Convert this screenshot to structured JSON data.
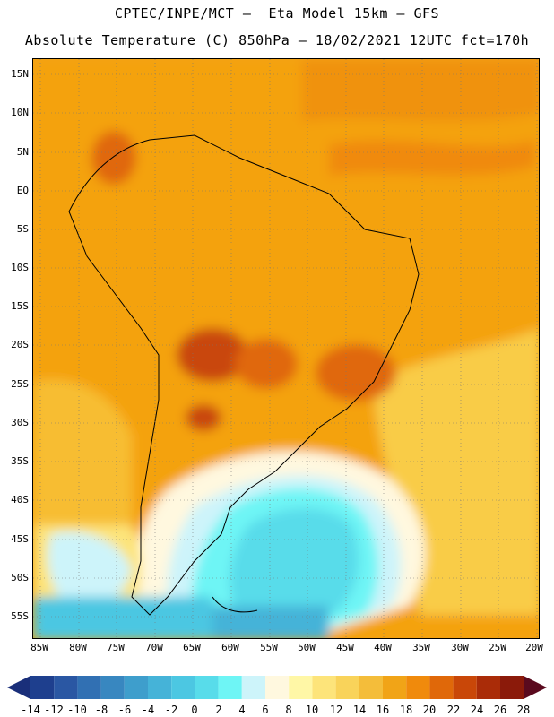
{
  "header": {
    "line1": "CPTEC/INPE/MCT –  Eta Model 15km – GFS",
    "line2": "Absolute Temperature (C) 850hPa – 18/02/2021 12UTC fct=170h"
  },
  "map": {
    "lat_labels": [
      "15N",
      "10N",
      "5N",
      "EQ",
      "5S",
      "10S",
      "15S",
      "20S",
      "25S",
      "30S",
      "35S",
      "40S",
      "45S",
      "50S",
      "55S"
    ],
    "lon_labels": [
      "85W",
      "80W",
      "75W",
      "70W",
      "65W",
      "60W",
      "55W",
      "50W",
      "45W",
      "40W",
      "35W",
      "30W",
      "25W",
      "20W"
    ],
    "lat_range": [
      -57.5,
      16
    ],
    "lon_range": [
      -86,
      -19.5
    ],
    "grid": "dotted"
  },
  "legend": {
    "labels": [
      "-14",
      "-12",
      "-10",
      "-8",
      "-6",
      "-4",
      "-2",
      "0",
      "2",
      "4",
      "6",
      "8",
      "10",
      "12",
      "14",
      "16",
      "18",
      "20",
      "22",
      "24",
      "26",
      "28"
    ],
    "colors": [
      "#1e3f8e",
      "#2a57a3",
      "#3170b3",
      "#3887c0",
      "#3e9ecc",
      "#45b3d8",
      "#4cc7e2",
      "#58dcea",
      "#6ef5f5",
      "#cdf4fa",
      "#fff8df",
      "#fff7a6",
      "#fde47a",
      "#f9d35a",
      "#f4bd3a",
      "#f1a417",
      "#f08a0c",
      "#e06809",
      "#c94708",
      "#aa2c08",
      "#8b1a0a",
      "#6b0e0a"
    ],
    "arrow_left_color": "#1a2f7a",
    "arrow_right_color": "#5a0a1e"
  }
}
